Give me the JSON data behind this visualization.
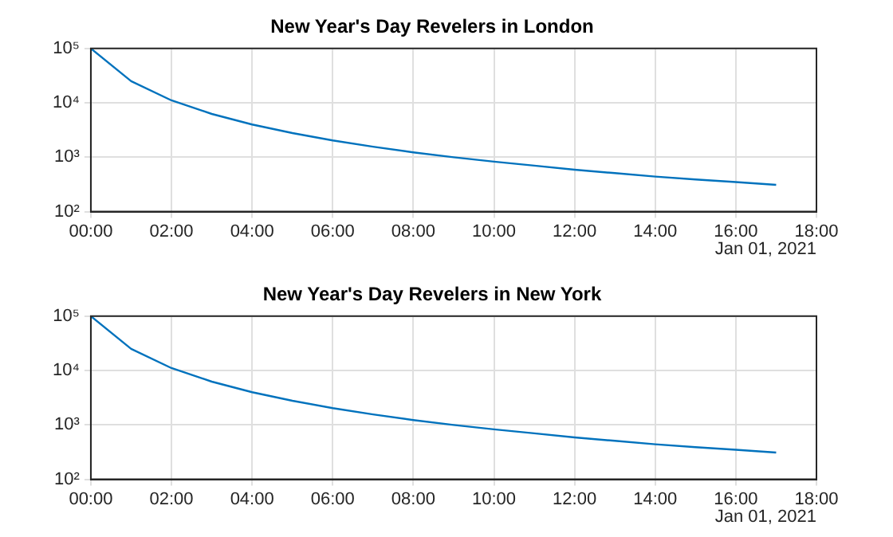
{
  "chart_data": [
    {
      "type": "line",
      "title": "New Year's Day Revelers in London",
      "x": [
        0,
        1,
        2,
        3,
        4,
        5,
        6,
        7,
        8,
        9,
        10,
        11,
        12,
        13,
        14,
        15,
        16,
        17
      ],
      "series": [
        {
          "color": "#0072bd",
          "values": [
            100000,
            25000,
            11100,
            6250,
            4000,
            2780,
            2040,
            1560,
            1230,
            1000,
            830,
            700,
            590,
            510,
            440,
            390,
            350,
            310
          ]
        }
      ],
      "xlim": [
        0,
        18
      ],
      "xticks": [
        {
          "value": 0,
          "label": "00:00"
        },
        {
          "value": 2,
          "label": "02:00"
        },
        {
          "value": 4,
          "label": "04:00"
        },
        {
          "value": 6,
          "label": "06:00"
        },
        {
          "value": 8,
          "label": "08:00"
        },
        {
          "value": 10,
          "label": "10:00"
        },
        {
          "value": 12,
          "label": "12:00"
        },
        {
          "value": 14,
          "label": "14:00"
        },
        {
          "value": 16,
          "label": "16:00"
        },
        {
          "value": 18,
          "label": "18:00"
        }
      ],
      "ylim": [
        100,
        100000
      ],
      "yticks": [
        {
          "value": 100,
          "label": "10²"
        },
        {
          "value": 1000,
          "label": "10³"
        },
        {
          "value": 10000,
          "label": "10⁴"
        },
        {
          "value": 100000,
          "label": "10⁵"
        }
      ],
      "log": "y",
      "grid": true,
      "legend": false,
      "marker": "none",
      "line_style": "solid",
      "annotations": [
        "Jan 01, 2021"
      ]
    },
    {
      "type": "line",
      "title": "New Year's Day Revelers in New York",
      "x": [
        0,
        1,
        2,
        3,
        4,
        5,
        6,
        7,
        8,
        9,
        10,
        11,
        12,
        13,
        14,
        15,
        16,
        17
      ],
      "series": [
        {
          "color": "#0072bd",
          "values": [
            100000,
            25000,
            11100,
            6250,
            4000,
            2780,
            2040,
            1560,
            1230,
            1000,
            830,
            700,
            590,
            510,
            440,
            390,
            350,
            310
          ]
        }
      ],
      "xlim": [
        0,
        18
      ],
      "xticks": [
        {
          "value": 0,
          "label": "00:00"
        },
        {
          "value": 2,
          "label": "02:00"
        },
        {
          "value": 4,
          "label": "04:00"
        },
        {
          "value": 6,
          "label": "06:00"
        },
        {
          "value": 8,
          "label": "08:00"
        },
        {
          "value": 10,
          "label": "10:00"
        },
        {
          "value": 12,
          "label": "12:00"
        },
        {
          "value": 14,
          "label": "14:00"
        },
        {
          "value": 16,
          "label": "16:00"
        },
        {
          "value": 18,
          "label": "18:00"
        }
      ],
      "ylim": [
        100,
        100000
      ],
      "yticks": [
        {
          "value": 100,
          "label": "10²"
        },
        {
          "value": 1000,
          "label": "10³"
        },
        {
          "value": 10000,
          "label": "10⁴"
        },
        {
          "value": 100000,
          "label": "10⁵"
        }
      ],
      "log": "y",
      "grid": true,
      "legend": false,
      "marker": "none",
      "line_style": "solid",
      "annotations": [
        "Jan 01, 2021"
      ]
    }
  ]
}
